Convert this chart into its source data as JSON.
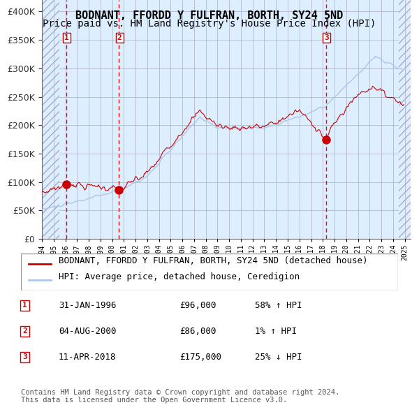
{
  "title": "BODNANT, FFORDD Y FULFRAN, BORTH, SY24 5ND",
  "subtitle": "Price paid vs. HM Land Registry's House Price Index (HPI)",
  "ylim": [
    0,
    420000
  ],
  "yticks": [
    0,
    50000,
    100000,
    150000,
    200000,
    250000,
    300000,
    350000,
    400000
  ],
  "ytick_labels": [
    "£0",
    "£50K",
    "£100K",
    "£150K",
    "£200K",
    "£250K",
    "£300K",
    "£350K",
    "£400K"
  ],
  "hpi_color": "#aec6e8",
  "price_color": "#cc0000",
  "sale_dot_color": "#cc0000",
  "bg_left_color": "#ddeeff",
  "bg_right_color": "#ffffff",
  "grid_color": "#aaaacc",
  "dashed_line_color": "#ff0000",
  "sale_events": [
    {
      "label": "1",
      "date_num": 1996.08,
      "price": 96000
    },
    {
      "label": "2",
      "date_num": 2000.58,
      "price": 86000
    },
    {
      "label": "3",
      "date_num": 2018.27,
      "price": 175000
    }
  ],
  "legend_line1": "BODNANT, FFORDD Y FULFRAN, BORTH, SY24 5ND (detached house)",
  "legend_line2": "HPI: Average price, detached house, Ceredigion",
  "table_rows": [
    {
      "num": "1",
      "date": "31-JAN-1996",
      "price": "£96,000",
      "hpi": "58% ↑ HPI"
    },
    {
      "num": "2",
      "date": "04-AUG-2000",
      "price": "£86,000",
      "hpi": "1% ↑ HPI"
    },
    {
      "num": "3",
      "date": "11-APR-2018",
      "price": "£175,000",
      "hpi": "25% ↓ HPI"
    }
  ],
  "footer": "Contains HM Land Registry data © Crown copyright and database right 2024.\nThis data is licensed under the Open Government Licence v3.0.",
  "title_fontsize": 11,
  "subtitle_fontsize": 10,
  "tick_fontsize": 9,
  "legend_fontsize": 9,
  "table_fontsize": 9,
  "footer_fontsize": 7.5
}
